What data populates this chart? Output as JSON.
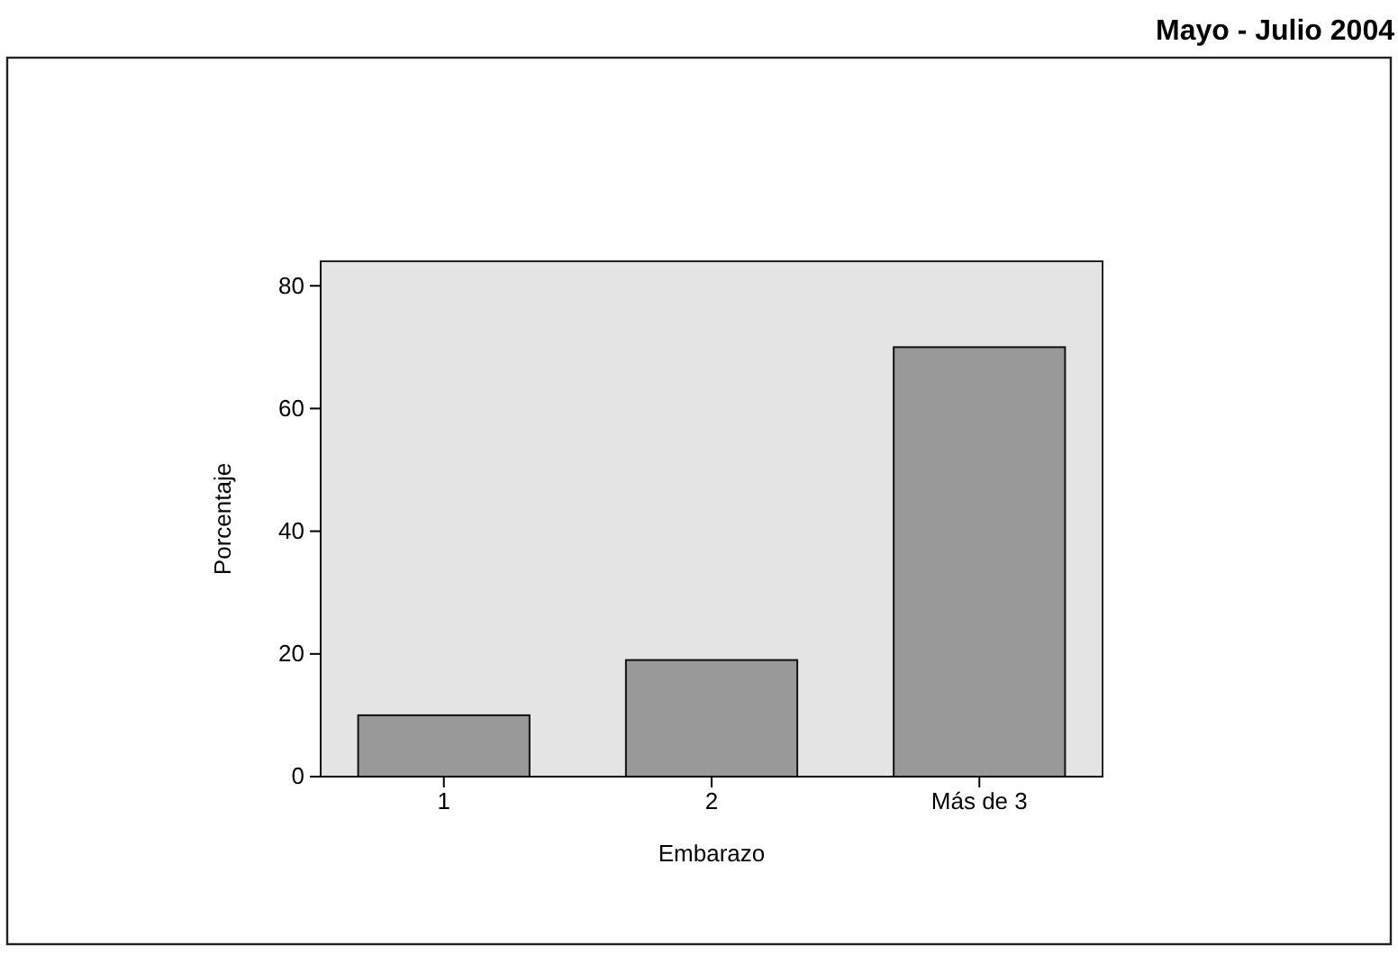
{
  "chart_data": {
    "type": "bar",
    "title": "Mayo - Julio 2004",
    "xlabel": "Embarazo",
    "ylabel": "Porcentaje",
    "categories": [
      "1",
      "2",
      "Más de 3"
    ],
    "values": [
      10,
      19,
      70
    ],
    "color": "#999999",
    "ylim": [
      0,
      84
    ],
    "yticks": [
      0,
      20,
      40,
      60,
      80
    ],
    "grid": false
  }
}
